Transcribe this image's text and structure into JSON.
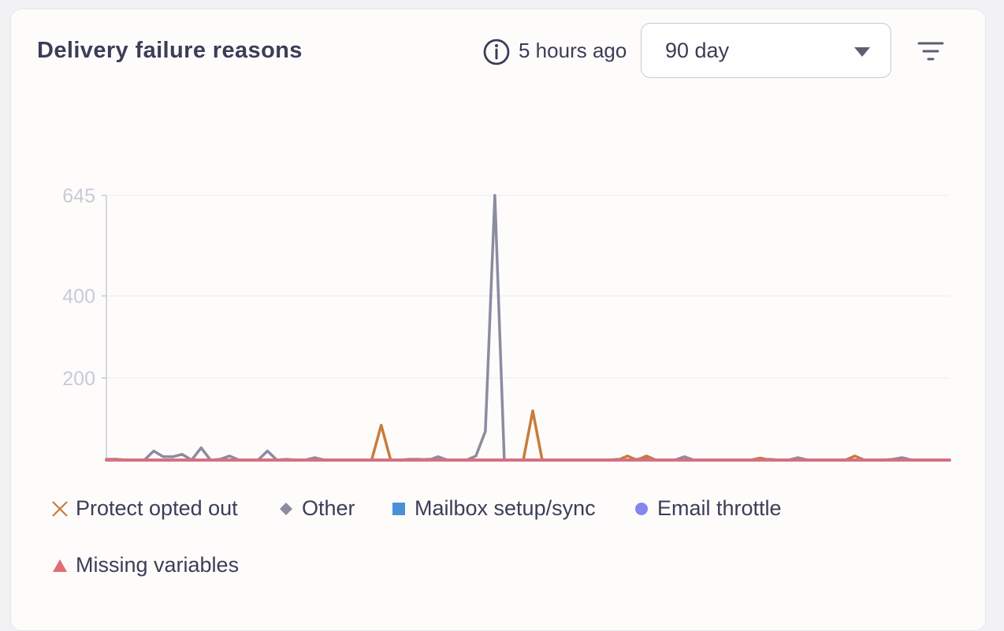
{
  "card": {
    "title": "Delivery failure reasons",
    "updated": "5 hours ago",
    "range_select": {
      "value": "90 day"
    }
  },
  "icons": {
    "info": "info-circle-icon",
    "filter": "filter-lines-icon",
    "dropdown": "caret-down-icon"
  },
  "chart_data": {
    "type": "line",
    "x": [
      1,
      2,
      3,
      4,
      5,
      6,
      7,
      8,
      9,
      10,
      11,
      12,
      13,
      14,
      15,
      16,
      17,
      18,
      19,
      20,
      21,
      22,
      23,
      24,
      25,
      26,
      27,
      28,
      29,
      30,
      31,
      32,
      33,
      34,
      35,
      36,
      37,
      38,
      39,
      40,
      41,
      42,
      43,
      44,
      45,
      46,
      47,
      48,
      49,
      50,
      51,
      52,
      53,
      54,
      55,
      56,
      57,
      58,
      59,
      60,
      61,
      62,
      63,
      64,
      65,
      66,
      67,
      68,
      69,
      70,
      71,
      72,
      73,
      74,
      75,
      76,
      77,
      78,
      79,
      80,
      81,
      82,
      83,
      84,
      85,
      86,
      87,
      88,
      89,
      90
    ],
    "yticks": [
      200,
      400,
      645
    ],
    "ylim": [
      0,
      645
    ],
    "grid": true,
    "legend_position": "bottom-left",
    "series": [
      {
        "name": "Protect opted out",
        "color": "#c97b3c",
        "marker": "x",
        "values": [
          0,
          2,
          0,
          0,
          0,
          0,
          0,
          0,
          0,
          0,
          0,
          0,
          0,
          0,
          0,
          0,
          0,
          0,
          0,
          0,
          0,
          0,
          0,
          0,
          0,
          0,
          0,
          0,
          0,
          85,
          0,
          0,
          0,
          0,
          2,
          0,
          0,
          0,
          0,
          0,
          0,
          0,
          0,
          0,
          0,
          120,
          0,
          0,
          0,
          0,
          0,
          0,
          0,
          0,
          0,
          10,
          0,
          10,
          0,
          0,
          0,
          0,
          0,
          0,
          0,
          0,
          0,
          0,
          0,
          5,
          0,
          0,
          0,
          0,
          0,
          0,
          0,
          0,
          0,
          10,
          0,
          0,
          0,
          0,
          0,
          0,
          0,
          0,
          0,
          0
        ]
      },
      {
        "name": "Other",
        "color": "#8c8ca0",
        "marker": "diamond",
        "values": [
          2,
          2,
          0,
          0,
          0,
          22,
          8,
          8,
          14,
          0,
          30,
          0,
          2,
          10,
          0,
          0,
          0,
          22,
          0,
          2,
          0,
          0,
          6,
          0,
          0,
          0,
          0,
          0,
          0,
          0,
          0,
          0,
          2,
          2,
          0,
          8,
          0,
          0,
          0,
          10,
          70,
          645,
          0,
          0,
          0,
          0,
          0,
          0,
          0,
          0,
          0,
          0,
          0,
          0,
          2,
          0,
          2,
          6,
          0,
          0,
          0,
          8,
          0,
          0,
          0,
          0,
          0,
          0,
          0,
          0,
          2,
          0,
          0,
          6,
          0,
          0,
          0,
          0,
          0,
          0,
          0,
          0,
          0,
          2,
          6,
          0,
          0,
          0,
          0,
          0
        ]
      },
      {
        "name": "Mailbox setup/sync",
        "color": "#4a90d9",
        "marker": "square",
        "values": [
          0,
          0,
          0,
          0,
          0,
          0,
          0,
          0,
          0,
          0,
          0,
          0,
          0,
          0,
          0,
          0,
          0,
          0,
          0,
          0,
          0,
          0,
          0,
          0,
          0,
          0,
          0,
          0,
          0,
          0,
          0,
          0,
          0,
          0,
          0,
          0,
          0,
          0,
          0,
          0,
          0,
          0,
          0,
          0,
          0,
          0,
          0,
          0,
          0,
          0,
          0,
          0,
          0,
          0,
          0,
          0,
          0,
          0,
          0,
          0,
          0,
          0,
          0,
          0,
          0,
          0,
          0,
          0,
          0,
          0,
          0,
          0,
          0,
          0,
          0,
          0,
          0,
          0,
          0,
          0,
          0,
          0,
          0,
          0,
          0,
          0,
          0,
          0,
          0,
          0
        ]
      },
      {
        "name": "Email throttle",
        "color": "#8585f0",
        "marker": "circle",
        "values": [
          0,
          0,
          0,
          0,
          0,
          0,
          0,
          0,
          0,
          0,
          0,
          0,
          0,
          0,
          0,
          0,
          0,
          0,
          0,
          0,
          0,
          0,
          0,
          0,
          0,
          0,
          0,
          0,
          0,
          0,
          0,
          0,
          0,
          0,
          0,
          0,
          0,
          0,
          0,
          0,
          0,
          0,
          0,
          0,
          0,
          0,
          0,
          0,
          0,
          0,
          0,
          0,
          0,
          0,
          0,
          0,
          0,
          0,
          0,
          0,
          0,
          0,
          0,
          0,
          0,
          0,
          0,
          0,
          0,
          0,
          0,
          0,
          0,
          0,
          0,
          0,
          0,
          0,
          0,
          0,
          0,
          0,
          0,
          0,
          0,
          0,
          0,
          0,
          0,
          0
        ]
      },
      {
        "name": "Missing variables",
        "color": "#e06c75",
        "marker": "triangle",
        "values": [
          0,
          0,
          0,
          0,
          0,
          0,
          0,
          0,
          0,
          0,
          0,
          0,
          0,
          0,
          0,
          0,
          0,
          0,
          0,
          0,
          0,
          0,
          0,
          0,
          0,
          0,
          0,
          0,
          0,
          0,
          0,
          0,
          0,
          0,
          0,
          0,
          0,
          0,
          0,
          0,
          0,
          0,
          0,
          0,
          0,
          0,
          0,
          0,
          0,
          0,
          0,
          0,
          0,
          0,
          0,
          0,
          0,
          0,
          0,
          0,
          0,
          0,
          0,
          0,
          0,
          0,
          0,
          0,
          0,
          0,
          0,
          0,
          0,
          0,
          0,
          0,
          0,
          0,
          0,
          0,
          0,
          0,
          0,
          0,
          0,
          0,
          0,
          0,
          0,
          0
        ]
      }
    ]
  }
}
